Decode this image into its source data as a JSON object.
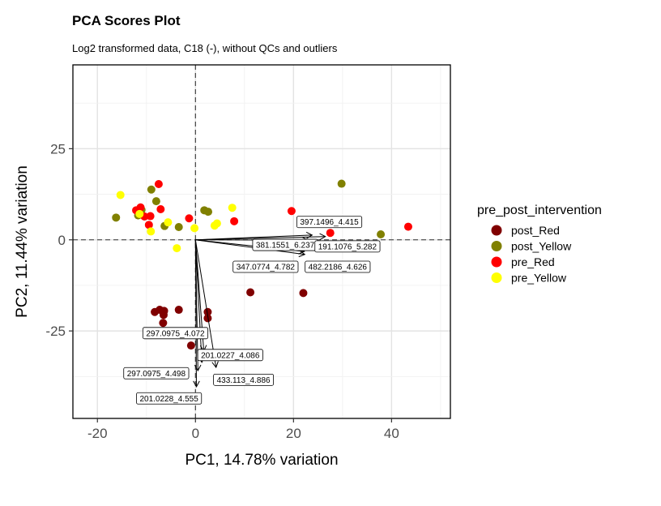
{
  "chart_data": {
    "type": "scatter",
    "title": "PCA Scores Plot",
    "subtitle": "Log2 transformed data, C18 (-), without QCs and outliers",
    "xlabel": "PC1, 14.78% variation",
    "ylabel": "PC2, 11.44% variation",
    "xlim": [
      -25,
      52
    ],
    "ylim": [
      -49,
      48
    ],
    "x_ticks": [
      -20,
      0,
      20,
      40
    ],
    "x_tick_labels": [
      "-20",
      "0",
      "20",
      "40"
    ],
    "y_ticks": [
      -25,
      0,
      25
    ],
    "y_tick_labels": [
      "-25",
      "0",
      "25"
    ],
    "grid": true,
    "reference_lines": {
      "x": 0,
      "y": 0,
      "style": "dashed"
    },
    "legend": {
      "title": "pre_post_intervention",
      "position": "right",
      "entries": [
        {
          "name": "post_Red",
          "color": "#800000"
        },
        {
          "name": "post_Yellow",
          "color": "#808000"
        },
        {
          "name": "pre_Red",
          "color": "#ff0000"
        },
        {
          "name": "pre_Yellow",
          "color": "#ffff00"
        }
      ]
    },
    "series": [
      {
        "name": "post_Red",
        "color": "#800000",
        "points": [
          [
            -8.3,
            -19.8
          ],
          [
            -7.3,
            -19.2
          ],
          [
            -6.4,
            -19.5
          ],
          [
            -6.5,
            -20.6
          ],
          [
            -6.6,
            -22.8
          ],
          [
            -3.4,
            -19.2
          ],
          [
            -0.9,
            -29
          ],
          [
            2.5,
            -19.8
          ],
          [
            2.5,
            -21.5
          ],
          [
            11.2,
            -14.4
          ],
          [
            22,
            -14.6
          ]
        ]
      },
      {
        "name": "post_Yellow",
        "color": "#808000",
        "points": [
          [
            -16.2,
            6.1
          ],
          [
            -11.7,
            6.7
          ],
          [
            -11,
            8.2
          ],
          [
            -9,
            13.8
          ],
          [
            -8,
            10.6
          ],
          [
            -6.3,
            3.8
          ],
          [
            -3.4,
            3.5
          ],
          [
            1.8,
            8.1
          ],
          [
            2.6,
            7.7
          ],
          [
            29.8,
            15.4
          ],
          [
            37.8,
            1.5
          ]
        ]
      },
      {
        "name": "pre_Red",
        "color": "#ff0000",
        "points": [
          [
            -12.1,
            8.1
          ],
          [
            -11.2,
            8.9
          ],
          [
            -10.4,
            6.4
          ],
          [
            -9.2,
            6.5
          ],
          [
            -9.5,
            4.1
          ],
          [
            -7.5,
            15.3
          ],
          [
            -7.1,
            8.4
          ],
          [
            -1.3,
            5.9
          ],
          [
            7.9,
            5.1
          ],
          [
            19.6,
            7.9
          ],
          [
            27.5,
            1.9
          ],
          [
            43.4,
            3.6
          ]
        ]
      },
      {
        "name": "pre_Yellow",
        "color": "#ffff00",
        "points": [
          [
            -15.3,
            12.3
          ],
          [
            -11.4,
            7.1
          ],
          [
            -9.1,
            2.3
          ],
          [
            -5.6,
            4.8
          ],
          [
            -3.8,
            -2.3
          ],
          [
            -0.2,
            3.2
          ],
          [
            3.9,
            3.9
          ],
          [
            4.4,
            4.5
          ],
          [
            7.5,
            8.8
          ],
          [
            27,
            4.5
          ]
        ]
      }
    ],
    "loadings": {
      "color": "#000000",
      "arrows": [
        {
          "label": "397.1496_4.415",
          "x": 23.8,
          "y": 1.3,
          "label_x": 27.3,
          "label_y": 4.9
        },
        {
          "label": "381.1551_6.237",
          "x": 22.9,
          "y": -0.1,
          "label_x": 18.3,
          "label_y": -1.4
        },
        {
          "label": "191.1076_5.282",
          "x": 26.5,
          "y": 0.9,
          "label_x": 31,
          "label_y": -1.8
        },
        {
          "label": "347.0774_4.782",
          "x": 22.2,
          "y": -3.2,
          "label_x": 14.3,
          "label_y": -7.4
        },
        {
          "label": "482.2186_4.626",
          "x": 22.3,
          "y": -4,
          "label_x": 29,
          "label_y": -7.4
        },
        {
          "label": "297.0975_4.072",
          "x": 1.7,
          "y": -30.5,
          "label_x": -4.1,
          "label_y": -25.6
        },
        {
          "label": "201.0227_4.086",
          "x": 1.3,
          "y": -33.6,
          "label_x": 7.1,
          "label_y": -31.6
        },
        {
          "label": "297.0975_4.498",
          "x": 0.5,
          "y": -35.9,
          "label_x": -8,
          "label_y": -36.6
        },
        {
          "label": "433.113_4.886",
          "x": 4.2,
          "y": -35,
          "label_x": 9.8,
          "label_y": -38.4
        },
        {
          "label": "201.0228_4.555",
          "x": 0.2,
          "y": -40.3,
          "label_x": -5.4,
          "label_y": -43.5
        }
      ]
    }
  }
}
